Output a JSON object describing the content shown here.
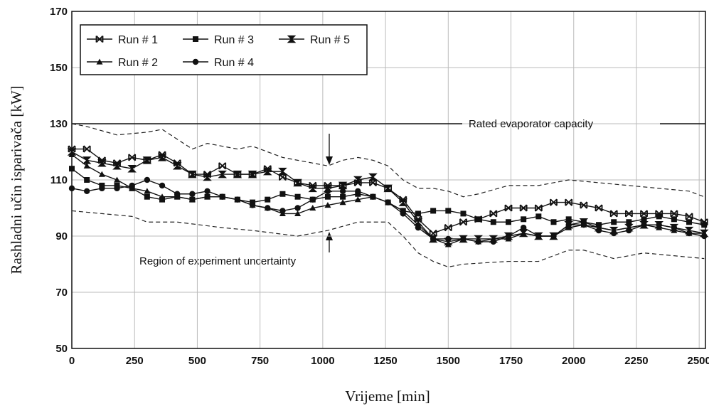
{
  "chart_data": {
    "type": "line",
    "xlabel": "Vrijeme [min]",
    "ylabel": "Rashladni učin isparivača [kW]",
    "xlim": [
      0,
      2525
    ],
    "ylim": [
      50,
      170
    ],
    "xticks": [
      0,
      250,
      500,
      750,
      1000,
      1250,
      1500,
      1750,
      2000,
      2250,
      2500
    ],
    "yticks": [
      50,
      70,
      90,
      110,
      130,
      150,
      170
    ],
    "grid": true,
    "legend": "upper left",
    "x": [
      0,
      60,
      120,
      180,
      240,
      300,
      360,
      420,
      480,
      540,
      600,
      660,
      720,
      780,
      840,
      900,
      960,
      1020,
      1080,
      1140,
      1200,
      1260,
      1320,
      1380,
      1440,
      1500,
      1560,
      1620,
      1680,
      1740,
      1800,
      1860,
      1920,
      1980,
      2040,
      2100,
      2160,
      2220,
      2280,
      2340,
      2400,
      2460,
      2520
    ],
    "series": [
      {
        "name": "Run # 1",
        "color": "#111111",
        "marker": "x",
        "values": [
          121,
          121,
          117,
          116,
          118,
          117,
          119,
          116,
          112,
          112,
          115,
          112,
          112,
          114,
          111,
          109,
          108,
          108,
          108,
          109,
          109,
          107,
          103,
          96,
          91,
          93,
          95,
          96,
          98,
          100,
          100,
          100,
          102,
          102,
          101,
          100,
          98,
          98,
          98,
          98,
          98,
          97,
          95
        ]
      },
      {
        "name": "Run # 2",
        "color": "#111111",
        "marker": "triangle",
        "values": [
          119,
          115,
          112,
          110,
          107,
          106,
          104,
          104,
          103,
          104,
          104,
          103,
          101,
          100,
          98,
          98,
          100,
          101,
          102,
          103,
          104,
          102,
          99,
          94,
          89,
          87,
          89,
          88,
          89,
          89,
          91,
          90,
          90,
          93,
          94,
          93,
          92,
          93,
          94,
          93,
          92,
          91,
          91
        ]
      },
      {
        "name": "Run # 3",
        "color": "#111111",
        "marker": "square",
        "values": [
          114,
          110,
          108,
          108,
          107,
          104,
          103,
          104,
          103,
          104,
          104,
          103,
          102,
          103,
          105,
          104,
          103,
          104,
          104,
          105,
          104,
          102,
          99,
          98,
          99,
          99,
          98,
          96,
          95,
          95,
          96,
          97,
          95,
          96,
          95,
          94,
          95,
          95,
          96,
          97,
          96,
          95,
          94
        ]
      },
      {
        "name": "Run # 4",
        "color": "#111111",
        "marker": "circle",
        "values": [
          107,
          106,
          107,
          107,
          108,
          110,
          108,
          105,
          105,
          106,
          104,
          103,
          101,
          100,
          99,
          100,
          103,
          106,
          106,
          106,
          104,
          102,
          98,
          93,
          89,
          89,
          89,
          88,
          88,
          90,
          93,
          90,
          90,
          94,
          94,
          92,
          91,
          92,
          94,
          94,
          93,
          91,
          90
        ]
      },
      {
        "name": "Run # 5",
        "color": "#111111",
        "marker": "hourglass",
        "values": [
          120,
          117,
          116,
          115,
          114,
          117,
          118,
          115,
          112,
          111,
          112,
          112,
          112,
          113,
          113,
          109,
          107,
          107,
          108,
          110,
          111,
          107,
          102,
          95,
          89,
          88,
          89,
          89,
          89,
          90,
          91,
          90,
          90,
          94,
          95,
          93,
          92,
          93,
          94,
          94,
          93,
          92,
          91
        ]
      }
    ],
    "bands": [
      {
        "x": [
          0,
          60,
          180,
          300,
          360,
          480,
          540,
          660,
          720,
          840,
          900,
          960,
          1020,
          1080,
          1140,
          1200,
          1260,
          1320,
          1380,
          1440,
          1500,
          1560,
          1620,
          1740,
          1860,
          1980,
          2100,
          2220,
          2340,
          2460,
          2520
        ],
        "values": [
          130,
          129,
          126,
          127,
          128,
          121,
          123,
          121,
          122,
          118,
          117,
          116,
          115,
          117,
          118,
          117,
          115,
          110,
          107,
          107,
          106,
          104,
          105,
          108,
          108,
          110,
          109,
          108,
          107,
          106,
          104
        ]
      },
      {
        "x": [
          0,
          120,
          240,
          300,
          420,
          600,
          720,
          900,
          1020,
          1140,
          1260,
          1320,
          1380,
          1440,
          1500,
          1560,
          1740,
          1860,
          1980,
          2040,
          2160,
          2280,
          2400,
          2520
        ],
        "values": [
          99,
          98,
          97,
          95,
          95,
          93,
          92,
          90,
          92,
          95,
          95,
          90,
          84,
          81,
          79,
          80,
          81,
          81,
          85,
          85,
          82,
          84,
          83,
          82
        ]
      }
    ],
    "reference_line": {
      "value": 130,
      "label": "Rated evaporator capacity"
    },
    "annotation": "Region of experiment uncertainty"
  }
}
